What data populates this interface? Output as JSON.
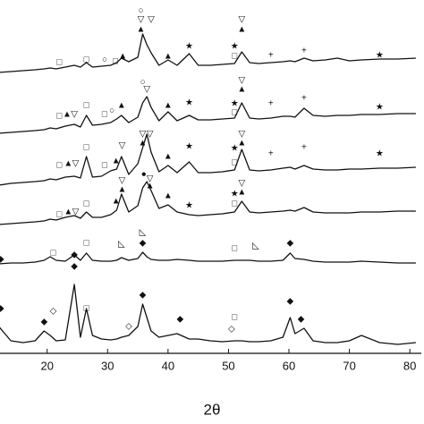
{
  "chart_data": {
    "type": "line",
    "x_label": "2θ",
    "x": [
      12,
      14,
      16,
      18,
      19.5,
      20.5,
      21.5,
      23,
      24.5,
      25.5,
      26.5,
      27.5,
      29,
      30.5,
      31.5,
      32.3,
      33.5,
      35,
      35.8,
      36.5,
      37.2,
      38.5,
      40,
      41.5,
      43.5,
      45,
      47,
      49,
      51,
      52.2,
      53.5,
      55,
      57,
      59,
      60.2,
      61,
      62.5,
      64,
      66,
      68,
      70,
      72,
      75,
      78,
      81
    ],
    "xlim": [
      12.2,
      81.9
    ],
    "xticks": [
      20,
      30,
      40,
      50,
      60,
      70,
      80
    ],
    "ylim": [
      0,
      400
    ],
    "color": "#111111",
    "series": [
      {
        "values": [
          314,
          315,
          316,
          317,
          318,
          319,
          318,
          320,
          322,
          320,
          325,
          320,
          321,
          322,
          325,
          330,
          326,
          331,
          357,
          345,
          336,
          322,
          328,
          322,
          335,
          322,
          322,
          323,
          324,
          337,
          325,
          324,
          325,
          326,
          327,
          326,
          330,
          327,
          328,
          330,
          327,
          328,
          329,
          329,
          330
        ]
      },
      {
        "values": [
          246,
          247,
          248,
          249,
          250,
          252,
          251,
          254,
          256,
          253,
          266,
          255,
          256,
          258,
          262,
          266,
          258,
          264,
          280,
          287,
          275,
          260,
          270,
          260,
          266,
          261,
          261,
          262,
          263,
          280,
          263,
          262,
          263,
          265,
          265,
          264,
          274,
          266,
          265,
          266,
          266,
          267,
          267,
          268,
          268
        ]
      },
      {
        "values": [
          188,
          190,
          191,
          192,
          193,
          195,
          194,
          197,
          198,
          196,
          220,
          197,
          198,
          204,
          206,
          220,
          200,
          212,
          230,
          245,
          225,
          203,
          210,
          202,
          214,
          202,
          202,
          203,
          205,
          228,
          205,
          204,
          205,
          207,
          208,
          206,
          210,
          206,
          205,
          205,
          206,
          206,
          207,
          207,
          208
        ]
      },
      {
        "values": [
          144,
          145,
          146,
          147,
          148,
          150,
          149,
          152,
          154,
          151,
          158,
          152,
          152,
          155,
          160,
          178,
          158,
          165,
          185,
          192,
          182,
          162,
          166,
          158,
          155,
          154,
          155,
          156,
          158,
          170,
          158,
          157,
          158,
          159,
          160,
          159,
          163,
          158,
          157,
          157,
          157,
          158,
          158,
          159,
          159
        ]
      },
      {
        "values": [
          100,
          101,
          101,
          102,
          104,
          108,
          104,
          103,
          110,
          104,
          112,
          104,
          103,
          103,
          104,
          107,
          104,
          106,
          113,
          108,
          105,
          104,
          104,
          105,
          104,
          103,
          103,
          103,
          104,
          104,
          104,
          103,
          103,
          104,
          112,
          106,
          105,
          103,
          102,
          102,
          102,
          103,
          102,
          101,
          101
        ]
      },
      {
        "values": [
          30,
          14,
          12,
          14,
          25,
          20,
          14,
          15,
          77,
          18,
          50,
          20,
          16,
          15,
          16,
          18,
          20,
          30,
          55,
          40,
          25,
          18,
          20,
          22,
          16,
          16,
          14,
          13,
          14,
          14,
          13,
          13,
          14,
          18,
          40,
          22,
          28,
          14,
          12,
          12,
          14,
          20,
          12,
          10,
          12
        ]
      }
    ],
    "annotations": [
      {
        "x": 22,
        "y": 325,
        "label": "□"
      },
      {
        "x": 26.5,
        "y": 328,
        "label": "□"
      },
      {
        "x": 29.5,
        "y": 328,
        "label": "○"
      },
      {
        "x": 31.3,
        "y": 326,
        "label": "□"
      },
      {
        "x": 32.5,
        "y": 332,
        "label": "▲"
      },
      {
        "x": 35.5,
        "y": 383,
        "label": "○"
      },
      {
        "x": 35.5,
        "y": 373,
        "label": "▽"
      },
      {
        "x": 35.5,
        "y": 362,
        "label": "▲"
      },
      {
        "x": 37.2,
        "y": 373,
        "label": "▽"
      },
      {
        "x": 40,
        "y": 332,
        "label": "▲"
      },
      {
        "x": 43.5,
        "y": 343,
        "label": "★"
      },
      {
        "x": 51,
        "y": 332,
        "label": "□"
      },
      {
        "x": 51,
        "y": 343,
        "label": "★"
      },
      {
        "x": 52.2,
        "y": 373,
        "label": "▽"
      },
      {
        "x": 52.2,
        "y": 362,
        "label": "▲"
      },
      {
        "x": 57,
        "y": 333,
        "label": "+"
      },
      {
        "x": 62.5,
        "y": 338,
        "label": "+"
      },
      {
        "x": 75,
        "y": 333,
        "label": "★"
      },
      {
        "x": 22,
        "y": 265,
        "label": "□"
      },
      {
        "x": 23.3,
        "y": 267,
        "label": "▲"
      },
      {
        "x": 24.5,
        "y": 267,
        "label": "▽"
      },
      {
        "x": 26.5,
        "y": 277,
        "label": "□"
      },
      {
        "x": 29.5,
        "y": 267,
        "label": "□"
      },
      {
        "x": 30.7,
        "y": 271,
        "label": "○"
      },
      {
        "x": 32.3,
        "y": 277,
        "label": "▲"
      },
      {
        "x": 35.8,
        "y": 303,
        "label": "○"
      },
      {
        "x": 36.5,
        "y": 295,
        "label": "▽"
      },
      {
        "x": 40,
        "y": 277,
        "label": "▲"
      },
      {
        "x": 43.5,
        "y": 280,
        "label": "★"
      },
      {
        "x": 51,
        "y": 269,
        "label": "□"
      },
      {
        "x": 51,
        "y": 279,
        "label": "★"
      },
      {
        "x": 52.2,
        "y": 295,
        "label": "▲"
      },
      {
        "x": 52.2,
        "y": 305,
        "label": "▽"
      },
      {
        "x": 57,
        "y": 279,
        "label": "+"
      },
      {
        "x": 62.5,
        "y": 285,
        "label": "+"
      },
      {
        "x": 75,
        "y": 275,
        "label": "★"
      },
      {
        "x": 22,
        "y": 210,
        "label": "□"
      },
      {
        "x": 23.5,
        "y": 212,
        "label": "▲"
      },
      {
        "x": 24.7,
        "y": 212,
        "label": "▽"
      },
      {
        "x": 26.5,
        "y": 230,
        "label": "□"
      },
      {
        "x": 29.5,
        "y": 210,
        "label": "□"
      },
      {
        "x": 31.4,
        "y": 215,
        "label": "▲"
      },
      {
        "x": 32.4,
        "y": 232,
        "label": "▽"
      },
      {
        "x": 35.8,
        "y": 245,
        "label": "▽"
      },
      {
        "x": 35.8,
        "y": 235,
        "label": "▲"
      },
      {
        "x": 37,
        "y": 245,
        "label": "▽"
      },
      {
        "x": 40,
        "y": 220,
        "label": "▲"
      },
      {
        "x": 43.5,
        "y": 231,
        "label": "★"
      },
      {
        "x": 51,
        "y": 213,
        "label": "□"
      },
      {
        "x": 51,
        "y": 229,
        "label": "★"
      },
      {
        "x": 52.2,
        "y": 245,
        "label": "▽"
      },
      {
        "x": 52.2,
        "y": 235,
        "label": "▲"
      },
      {
        "x": 57,
        "y": 223,
        "label": "+"
      },
      {
        "x": 62.5,
        "y": 230,
        "label": "+"
      },
      {
        "x": 75,
        "y": 223,
        "label": "★"
      },
      {
        "x": 22,
        "y": 155,
        "label": "□"
      },
      {
        "x": 23.5,
        "y": 158,
        "label": "▲"
      },
      {
        "x": 24.7,
        "y": 158,
        "label": "▽"
      },
      {
        "x": 26.5,
        "y": 167,
        "label": "□"
      },
      {
        "x": 31.4,
        "y": 170,
        "label": "▲"
      },
      {
        "x": 32.4,
        "y": 183,
        "label": "▲"
      },
      {
        "x": 32.4,
        "y": 193,
        "label": "▽"
      },
      {
        "x": 36,
        "y": 200,
        "label": "●"
      },
      {
        "x": 37,
        "y": 195,
        "label": "▽"
      },
      {
        "x": 37,
        "y": 187,
        "label": "▲"
      },
      {
        "x": 40,
        "y": 176,
        "label": "▲"
      },
      {
        "x": 43.5,
        "y": 165,
        "label": "★"
      },
      {
        "x": 51,
        "y": 167,
        "label": "□"
      },
      {
        "x": 51,
        "y": 178,
        "label": "★"
      },
      {
        "x": 52.2,
        "y": 180,
        "label": "▲"
      },
      {
        "x": 52.2,
        "y": 190,
        "label": "▽"
      },
      {
        "x": 12.3,
        "y": 105,
        "label": "◆"
      },
      {
        "x": 21,
        "y": 112,
        "label": "□"
      },
      {
        "x": 24.5,
        "y": 110,
        "label": "◆"
      },
      {
        "x": 26.5,
        "y": 123,
        "label": "□"
      },
      {
        "x": 32.3,
        "y": 122,
        "label": "◺"
      },
      {
        "x": 35.8,
        "y": 123,
        "label": "◆"
      },
      {
        "x": 35.8,
        "y": 135,
        "label": "◺"
      },
      {
        "x": 51,
        "y": 117,
        "label": "□"
      },
      {
        "x": 54.5,
        "y": 120,
        "label": "◺"
      },
      {
        "x": 60.2,
        "y": 123,
        "label": "◆"
      },
      {
        "x": 12.3,
        "y": 50,
        "label": "◆"
      },
      {
        "x": 19.5,
        "y": 35,
        "label": "◆"
      },
      {
        "x": 21,
        "y": 47,
        "label": "◇"
      },
      {
        "x": 24.5,
        "y": 97,
        "label": "◆"
      },
      {
        "x": 26.5,
        "y": 50,
        "label": "□"
      },
      {
        "x": 33.5,
        "y": 30,
        "label": "◇"
      },
      {
        "x": 35.8,
        "y": 65,
        "label": "◆"
      },
      {
        "x": 42,
        "y": 38,
        "label": "◆"
      },
      {
        "x": 51,
        "y": 40,
        "label": "□"
      },
      {
        "x": 50.5,
        "y": 27,
        "label": "◇"
      },
      {
        "x": 60.2,
        "y": 58,
        "label": "◆"
      },
      {
        "x": 62,
        "y": 38,
        "label": "◆"
      }
    ]
  }
}
